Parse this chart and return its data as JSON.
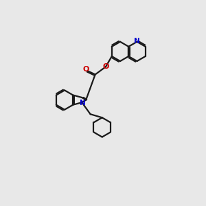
{
  "bg_color": "#e8e8e8",
  "bond_color": "#1a1a1a",
  "N_color": "#0000cc",
  "O_color": "#cc0000",
  "lw": 1.6,
  "figsize": [
    3.0,
    3.0
  ],
  "dpi": 100,
  "xlim": [
    0,
    10
  ],
  "ylim": [
    0,
    10
  ]
}
